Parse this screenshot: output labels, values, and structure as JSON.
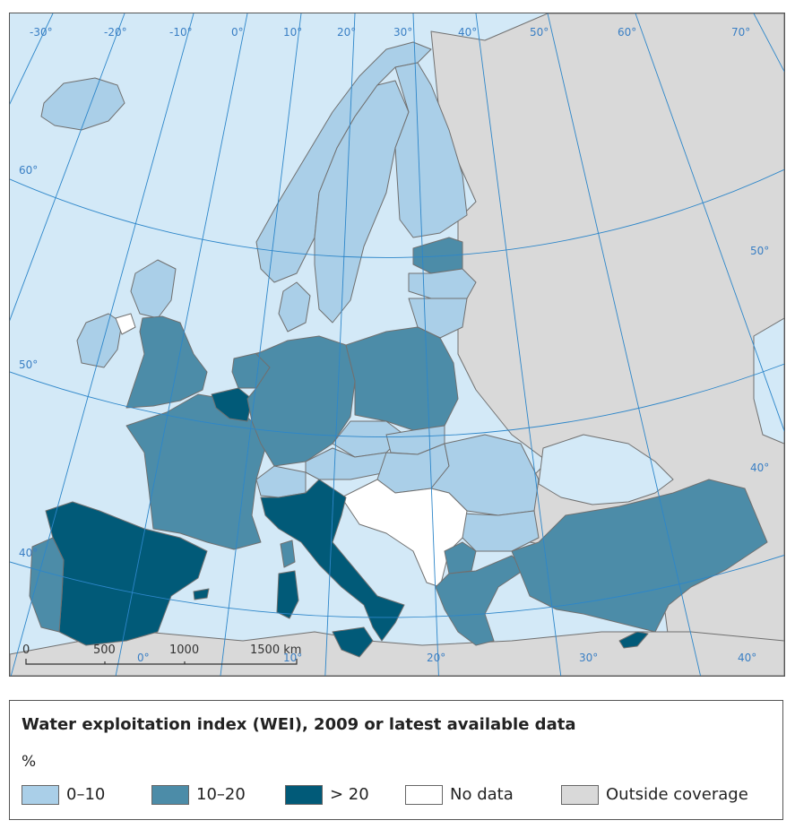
{
  "map": {
    "colors": {
      "sea": "#d3e9f7",
      "outside": "#d9d9d9",
      "low": "#aacfe8",
      "mid": "#4c8ca8",
      "high": "#015a78",
      "nodata": "#ffffff",
      "border": "#707070",
      "grid": "#2d86c9"
    },
    "longitude_labels": [
      "-30°",
      "-20°",
      "-10°",
      "0°",
      "10°",
      "20°",
      "30°",
      "40°",
      "50°",
      "60°",
      "70°"
    ],
    "latitude_labels": [
      "60°",
      "50°",
      "40°"
    ],
    "latitude_labels_right": [
      "50°",
      "40°"
    ],
    "bottom_longitude_labels": [
      "0°",
      "10°",
      "20°",
      "30°",
      "40°"
    ],
    "scale_bar": {
      "labels": [
        "0",
        "500",
        "1000",
        "1500 km"
      ]
    }
  },
  "legend": {
    "title": "Water exploitation index (WEI), 2009 or latest available data",
    "unit": "%",
    "items": [
      {
        "label": "0–10",
        "color": "#aacfe8"
      },
      {
        "label": "10–20",
        "color": "#4c8ca8"
      },
      {
        "label": "> 20",
        "color": "#015a78"
      },
      {
        "label": "No data",
        "color": "#ffffff"
      },
      {
        "label": "Outside coverage",
        "color": "#d9d9d9"
      }
    ]
  }
}
